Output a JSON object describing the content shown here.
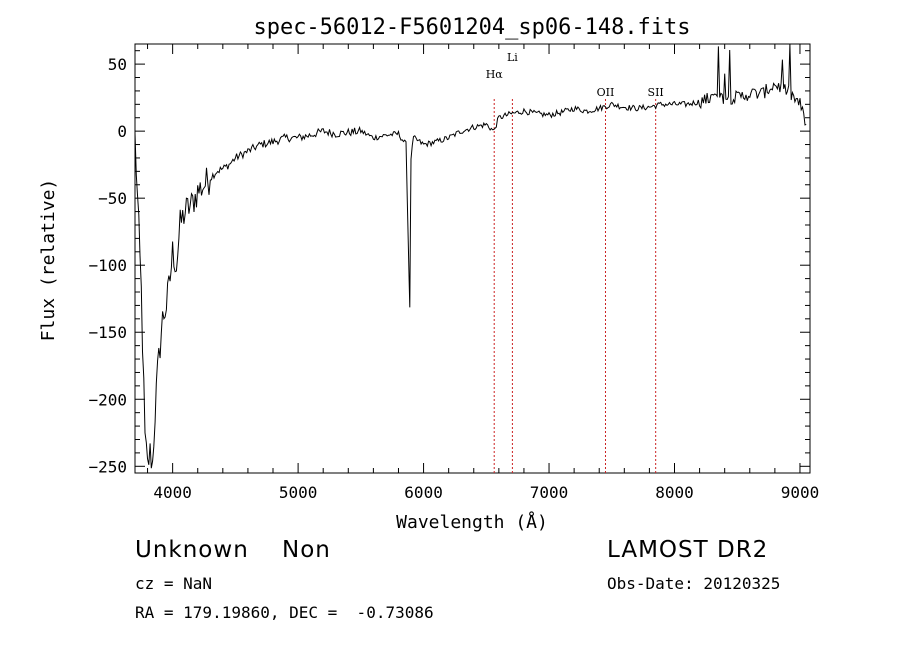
{
  "chart_data": {
    "type": "line",
    "title": "spec-56012-F5601204_sp06-148.fits",
    "xlabel": "Wavelength (Å)",
    "ylabel": "Flux (relative)",
    "xlim": [
      3700,
      9080
    ],
    "ylim": [
      -255,
      65
    ],
    "xticks": [
      4000,
      5000,
      6000,
      7000,
      8000,
      9000
    ],
    "yticks": [
      50,
      0,
      -50,
      -100,
      -150,
      -200,
      -250
    ],
    "xtick_labels": [
      "4000",
      "5000",
      "6000",
      "7000",
      "8000",
      "9000"
    ],
    "ytick_labels": [
      "50",
      "0",
      "−50",
      "−100",
      "−150",
      "−200",
      "−250"
    ],
    "series": [
      {
        "x": [
          3700,
          3750,
          3780,
          3800,
          3820,
          3840,
          3860,
          3880,
          3900,
          3920,
          3950,
          3980,
          4000,
          4030,
          4060,
          4100,
          4150,
          4200,
          4250,
          4300,
          4350,
          4400,
          4450,
          4500,
          4600,
          4700,
          4800,
          4900,
          5000,
          5100,
          5200,
          5300,
          5400,
          5500,
          5600,
          5700,
          5800,
          5860,
          5880,
          5890,
          5900,
          5920,
          6000,
          6100,
          6200,
          6300,
          6400,
          6500,
          6560,
          6600,
          6700,
          6800,
          6900,
          7000,
          7100,
          7200,
          7300,
          7400,
          7500,
          7600,
          7700,
          7800,
          7900,
          8000,
          8100,
          8200,
          8300,
          8400,
          8500,
          8600,
          8700,
          8800,
          8900,
          9000,
          9050
        ],
        "y": [
          -5,
          -120,
          -230,
          -250,
          -240,
          -248,
          -210,
          -180,
          -160,
          -140,
          -130,
          -110,
          -90,
          -100,
          -70,
          -60,
          -55,
          -45,
          -40,
          -35,
          -30,
          -28,
          -25,
          -20,
          -15,
          -10,
          -8,
          -5,
          -5,
          -3,
          0,
          -2,
          -1,
          0,
          -5,
          -3,
          -2,
          -10,
          -90,
          -130,
          -20,
          -5,
          -10,
          -8,
          -5,
          0,
          3,
          5,
          0,
          10,
          13,
          15,
          13,
          12,
          14,
          17,
          15,
          17,
          20,
          18,
          17,
          18,
          20,
          20,
          20,
          22,
          25,
          25,
          25,
          28,
          28,
          35,
          30,
          20,
          5
        ]
      }
    ],
    "line_markers": [
      {
        "label": "Hα",
        "x": 6563
      },
      {
        "label": "Li",
        "x": 6708
      },
      {
        "label": "OII",
        "x": 7450
      },
      {
        "label": "SII",
        "x": 7850
      }
    ],
    "grid": false
  },
  "info": {
    "object_class": "Unknown    Non",
    "cz": "cz = NaN",
    "radec": "RA = 179.19860, DEC =  -0.73086",
    "survey": "LAMOST DR2",
    "obs_date": "Obs-Date: 20120325"
  },
  "colors": {
    "spectrum": "#000000",
    "marker_line": "#cc2222",
    "background": "#ffffff"
  }
}
